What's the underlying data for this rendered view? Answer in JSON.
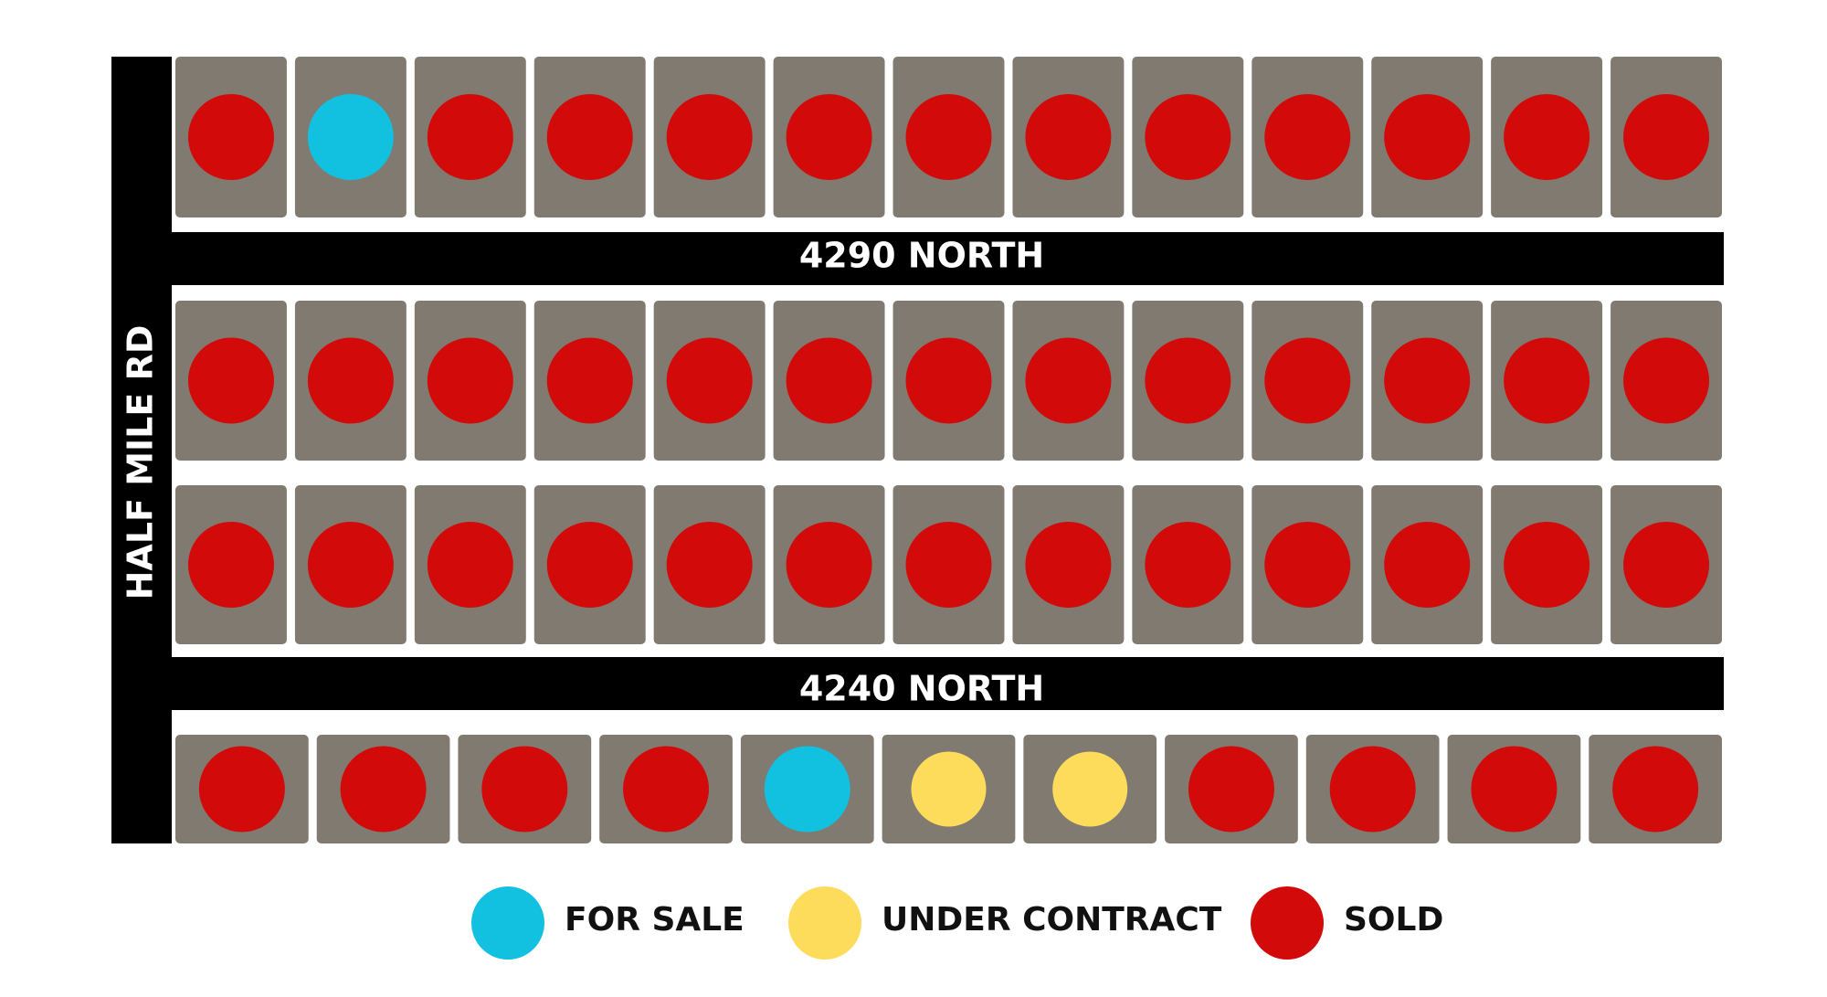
{
  "streets": {
    "north_top": "4290 NORTH",
    "north_bottom": "4240 NORTH",
    "west": "HALF MILE RD"
  },
  "legend": [
    {
      "label": "FOR SALE",
      "color": "#12c0e0"
    },
    {
      "label": "UNDER CONTRACT",
      "color": "#fddc5c"
    },
    {
      "label": "SOLD",
      "color": "#d20a0a"
    }
  ],
  "lot_rows": [
    [
      2,
      0,
      2,
      2,
      2,
      2,
      2,
      2,
      2,
      2,
      2,
      2,
      2
    ],
    [
      2,
      2,
      2,
      2,
      2,
      2,
      2,
      2,
      2,
      2,
      2,
      2,
      2
    ],
    [
      2,
      2,
      2,
      2,
      2,
      2,
      2,
      2,
      2,
      2,
      2,
      2,
      2
    ],
    [
      2,
      2,
      2,
      2,
      0,
      1,
      1,
      2,
      2,
      2,
      2
    ]
  ]
}
